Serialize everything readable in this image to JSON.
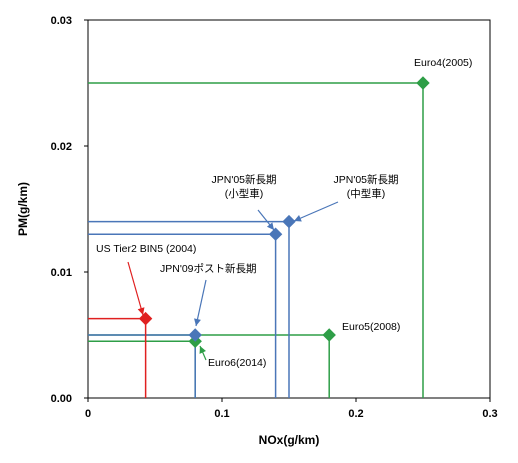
{
  "chart_data": {
    "type": "scatter",
    "xlabel": "NOx(g/km)",
    "ylabel": "PM(g/km)",
    "xlim": [
      0,
      0.3
    ],
    "ylim": [
      0,
      0.03
    ],
    "x_ticks": [
      {
        "value": 0,
        "label": "0"
      },
      {
        "value": 0.1,
        "label": "0.1"
      },
      {
        "value": 0.2,
        "label": "0.2"
      },
      {
        "value": 0.3,
        "label": "0.3"
      }
    ],
    "y_ticks": [
      {
        "value": 0,
        "label": "0.00"
      },
      {
        "value": 0.01,
        "label": "0.01"
      },
      {
        "value": 0.02,
        "label": "0.02"
      },
      {
        "value": 0.03,
        "label": "0.03"
      }
    ],
    "grid": false,
    "points": [
      {
        "id": "euro4",
        "lines": [
          "Euro4(2005)"
        ],
        "x": 0.25,
        "y": 0.025,
        "color": "#2e9e47"
      },
      {
        "id": "euro5",
        "lines": [
          "Euro5(2008)"
        ],
        "x": 0.18,
        "y": 0.005,
        "color": "#2e9e47"
      },
      {
        "id": "euro6",
        "lines": [
          "Euro6(2014)"
        ],
        "x": 0.08,
        "y": 0.0045,
        "color": "#2e9e47"
      },
      {
        "id": "jpn05-small",
        "lines": [
          "JPN'05新長期",
          "(小型車)"
        ],
        "x": 0.14,
        "y": 0.013,
        "color": "#4a76b8"
      },
      {
        "id": "jpn05-medium",
        "lines": [
          "JPN'05新長期",
          "(中型車)"
        ],
        "x": 0.15,
        "y": 0.014,
        "color": "#4a76b8"
      },
      {
        "id": "jpn09",
        "lines": [
          "JPN'09ポスト新長期"
        ],
        "x": 0.08,
        "y": 0.005,
        "color": "#4a76b8"
      },
      {
        "id": "us-tier2",
        "lines": [
          "US Tier2 BIN5 (2004)"
        ],
        "x": 0.043,
        "y": 0.0063,
        "color": "#e02020"
      }
    ]
  }
}
